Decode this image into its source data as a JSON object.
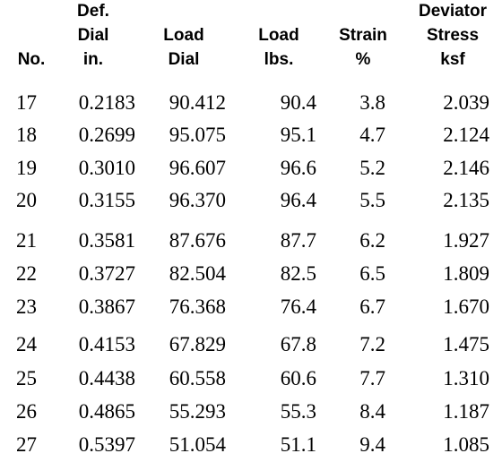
{
  "table": {
    "header": [
      [
        "No."
      ],
      [
        "Def.",
        "Dial",
        "in."
      ],
      [
        "Load",
        "Dial"
      ],
      [
        "Load",
        "lbs."
      ],
      [
        "Strain",
        "%"
      ],
      [
        "Deviator",
        "Stress",
        "ksf"
      ]
    ],
    "rows": [
      [
        "17",
        "0.2183",
        "90.412",
        "90.4",
        "3.8",
        "2.039"
      ],
      [
        "18",
        "0.2699",
        "95.075",
        "95.1",
        "4.7",
        "2.124"
      ],
      [
        "19",
        "0.3010",
        "96.607",
        "96.6",
        "5.2",
        "2.146"
      ],
      [
        "20",
        "0.3155",
        "96.370",
        "96.4",
        "5.5",
        "2.135"
      ],
      [
        "21",
        "0.3581",
        "87.676",
        "87.7",
        "6.2",
        "1.927"
      ],
      [
        "22",
        "0.3727",
        "82.504",
        "82.5",
        "6.5",
        "1.809"
      ],
      [
        "23",
        "0.3867",
        "76.368",
        "76.4",
        "6.7",
        "1.670"
      ],
      [
        "24",
        "0.4153",
        "67.829",
        "67.8",
        "7.2",
        "1.475"
      ],
      [
        "25",
        "0.4438",
        "60.558",
        "60.6",
        "7.7",
        "1.310"
      ],
      [
        "26",
        "0.4865",
        "55.293",
        "55.3",
        "8.4",
        "1.187"
      ],
      [
        "27",
        "0.5397",
        "51.054",
        "51.1",
        "9.4",
        "1.085"
      ]
    ]
  }
}
